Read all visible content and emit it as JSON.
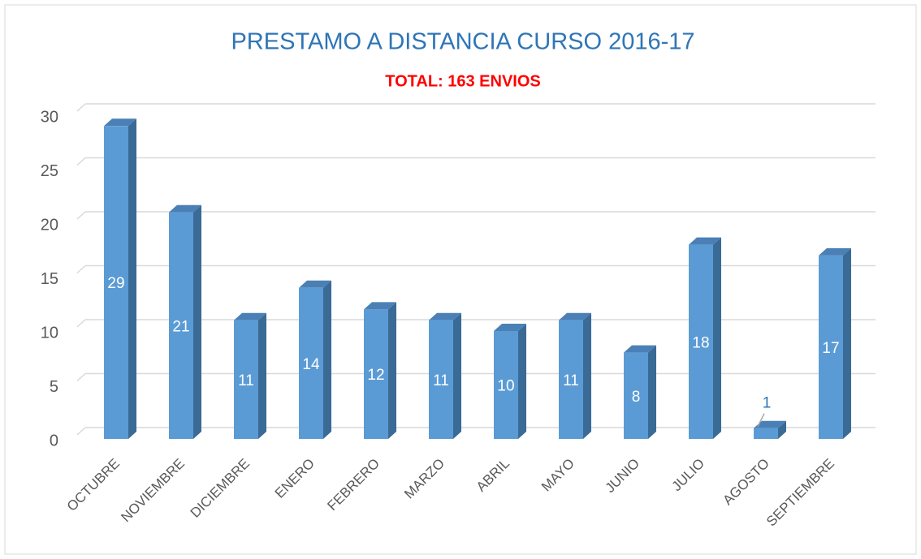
{
  "chart_data": {
    "type": "bar",
    "title": "PRESTAMO A DISTANCIA CURSO 2016-17",
    "subtitle": "TOTAL: 163 ENVIOS",
    "categories": [
      "OCTUBRE",
      "NOVIEMBRE",
      "DICIEMBRE",
      "ENERO",
      "FEBRERO",
      "MARZO",
      "ABRIL",
      "MAYO",
      "JUNIO",
      "JULIO",
      "AGOSTO",
      "SEPTIEMBRE"
    ],
    "values": [
      29,
      21,
      11,
      14,
      12,
      11,
      10,
      11,
      8,
      18,
      1,
      17
    ],
    "color": "#5b9bd5",
    "ylim": [
      0,
      30
    ],
    "yticks": [
      0,
      5,
      10,
      15,
      20,
      25,
      30
    ],
    "grid": true
  }
}
